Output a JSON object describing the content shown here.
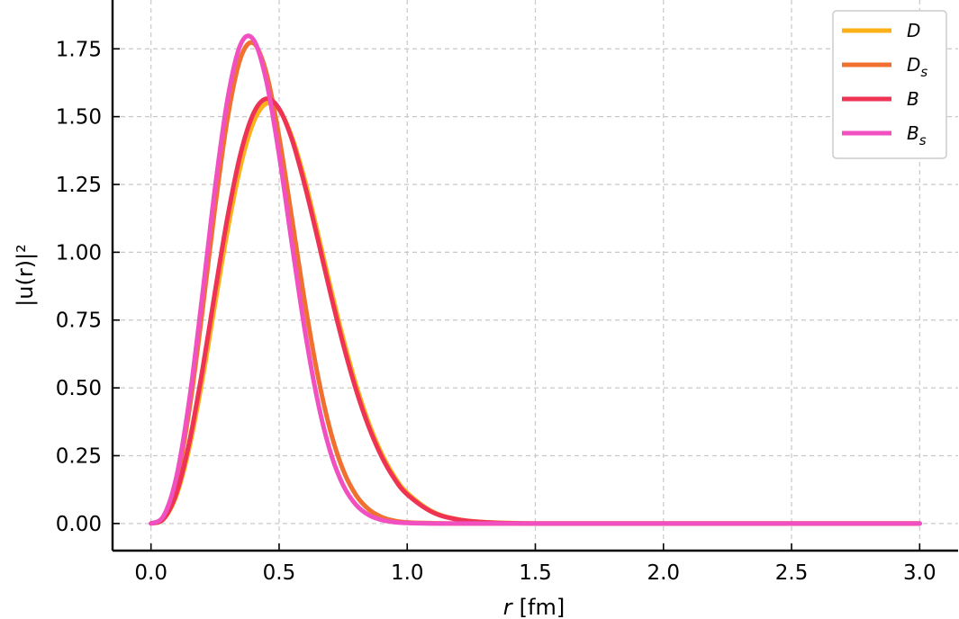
{
  "chart_data": {
    "type": "line",
    "xlabel_var": "r",
    "xlabel_unit": "[fm]",
    "ylabel": "|u(r)|²",
    "xlim": [
      -0.15,
      3.15
    ],
    "ylim": [
      -0.1,
      1.93
    ],
    "xticks": [
      0.0,
      0.5,
      1.0,
      1.5,
      2.0,
      2.5,
      3.0
    ],
    "xtick_labels": [
      "0.0",
      "0.5",
      "1.0",
      "1.5",
      "2.0",
      "2.5",
      "3.0"
    ],
    "yticks": [
      0.0,
      0.25,
      0.5,
      0.75,
      1.0,
      1.25,
      1.5,
      1.75
    ],
    "ytick_labels": [
      "0.00",
      "0.25",
      "0.50",
      "0.75",
      "1.00",
      "1.25",
      "1.50",
      "1.75"
    ],
    "grid": true,
    "legend_position": "top-right",
    "x": [
      0.0,
      0.05,
      0.1,
      0.15,
      0.2,
      0.25,
      0.3,
      0.35,
      0.4,
      0.45,
      0.5,
      0.55,
      0.6,
      0.65,
      0.7,
      0.75,
      0.8,
      0.85,
      0.9,
      0.95,
      1.0,
      1.1,
      1.2,
      1.3,
      1.4,
      1.5,
      1.6,
      1.7,
      1.8,
      2.0,
      2.5,
      3.0
    ],
    "series": [
      {
        "name": "D",
        "base": "D",
        "sub": "",
        "color": "#FBB117",
        "values": [
          0.0,
          0.017,
          0.106,
          0.282,
          0.528,
          0.81,
          1.087,
          1.32,
          1.479,
          1.548,
          1.526,
          1.425,
          1.267,
          1.074,
          0.873,
          0.682,
          0.512,
          0.37,
          0.258,
          0.173,
          0.113,
          0.043,
          0.015,
          0.005,
          0.002,
          0.0,
          0.0,
          0.0,
          0.0,
          0.0,
          0.0,
          0.0
        ]
      },
      {
        "name": "Ds",
        "base": "D",
        "sub": "s",
        "color": "#F07030",
        "values": [
          0.0,
          0.026,
          0.16,
          0.422,
          0.779,
          1.165,
          1.501,
          1.717,
          1.771,
          1.662,
          1.426,
          1.125,
          0.818,
          0.55,
          0.342,
          0.197,
          0.105,
          0.052,
          0.024,
          0.01,
          0.004,
          0.001,
          0.0,
          0.0,
          0.0,
          0.0,
          0.0,
          0.0,
          0.0,
          0.0,
          0.0,
          0.0
        ]
      },
      {
        "name": "B",
        "base": "B",
        "sub": "",
        "color": "#EE3355",
        "values": [
          0.0,
          0.018,
          0.114,
          0.302,
          0.562,
          0.855,
          1.136,
          1.365,
          1.512,
          1.566,
          1.529,
          1.416,
          1.248,
          1.052,
          0.85,
          0.661,
          0.494,
          0.356,
          0.247,
          0.165,
          0.107,
          0.041,
          0.014,
          0.005,
          0.001,
          0.0,
          0.0,
          0.0,
          0.0,
          0.0,
          0.0,
          0.0
        ]
      },
      {
        "name": "Bs",
        "base": "B",
        "sub": "s",
        "color": "#F050C0",
        "values": [
          0.0,
          0.029,
          0.175,
          0.458,
          0.838,
          1.237,
          1.571,
          1.767,
          1.784,
          1.633,
          1.359,
          1.031,
          0.715,
          0.454,
          0.264,
          0.141,
          0.069,
          0.031,
          0.013,
          0.005,
          0.002,
          0.0,
          0.0,
          0.0,
          0.0,
          0.0,
          0.0,
          0.0,
          0.0,
          0.0,
          0.0,
          0.0
        ]
      }
    ]
  }
}
